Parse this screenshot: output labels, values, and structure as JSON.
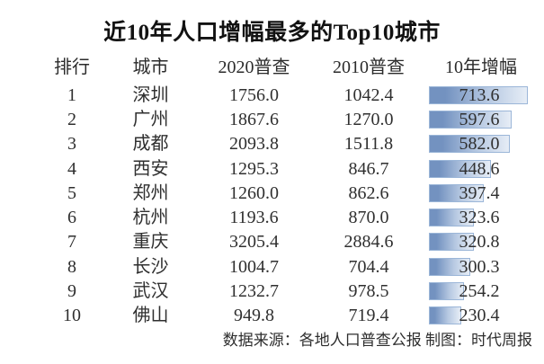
{
  "title": "近10年人口增幅最多的Top10城市",
  "footer": "数据来源：各地人口普查公报 制图：时代周报",
  "colors": {
    "bar_fill_start": "#7392c0",
    "bar_fill_end": "#e6edf6",
    "bar_border": "#9bb6d8",
    "text": "#2f2f2f",
    "title_text": "#121212"
  },
  "chart_data": {
    "type": "table",
    "title": "近10年人口增幅最多的Top10城市",
    "columns": [
      "排行",
      "城市",
      "2020普查",
      "2010普查",
      "10年增幅"
    ],
    "bar": {
      "column": "10年增幅",
      "max": 713.6,
      "unit": "万人"
    },
    "rows": [
      {
        "rank": "1",
        "city": "深圳",
        "census2020": "1756.0",
        "census2010": "1042.4",
        "growth": "713.6"
      },
      {
        "rank": "2",
        "city": "广州",
        "census2020": "1867.6",
        "census2010": "1270.0",
        "growth": "597.6"
      },
      {
        "rank": "3",
        "city": "成都",
        "census2020": "2093.8",
        "census2010": "1511.8",
        "growth": "582.0"
      },
      {
        "rank": "4",
        "city": "西安",
        "census2020": "1295.3",
        "census2010": "846.7",
        "growth": "448.6"
      },
      {
        "rank": "5",
        "city": "郑州",
        "census2020": "1260.0",
        "census2010": "862.6",
        "growth": "397.4"
      },
      {
        "rank": "6",
        "city": "杭州",
        "census2020": "1193.6",
        "census2010": "870.0",
        "growth": "323.6"
      },
      {
        "rank": "7",
        "city": "重庆",
        "census2020": "3205.4",
        "census2010": "2884.6",
        "growth": "320.8"
      },
      {
        "rank": "8",
        "city": "长沙",
        "census2020": "1004.7",
        "census2010": "704.4",
        "growth": "300.3"
      },
      {
        "rank": "9",
        "city": "武汉",
        "census2020": "1232.7",
        "census2010": "978.5",
        "growth": "254.2"
      },
      {
        "rank": "10",
        "city": "佛山",
        "census2020": "949.8",
        "census2010": "719.4",
        "growth": "230.4"
      }
    ]
  }
}
